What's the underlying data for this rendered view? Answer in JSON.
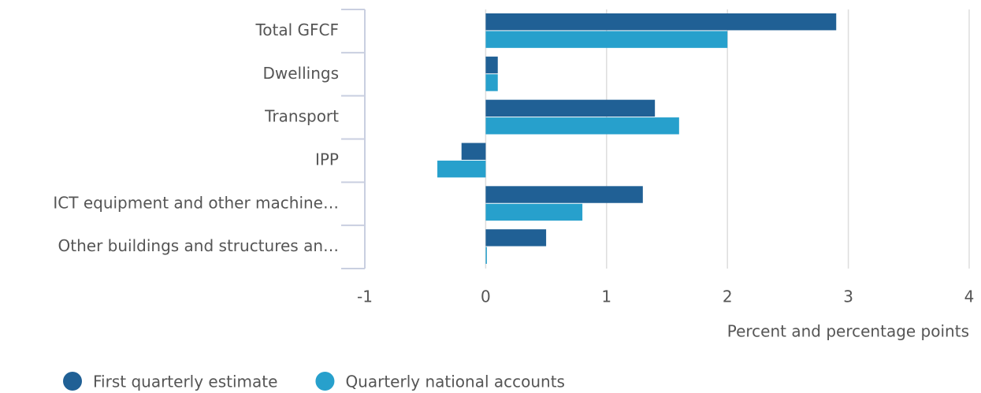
{
  "chart_data": {
    "type": "hbar",
    "categories": [
      "Total GFCF",
      "Dwellings",
      "Transport",
      "IPP",
      "ICT equipment and other machine…",
      "Other buildings and structures an…"
    ],
    "series": [
      {
        "name": "First quarterly estimate",
        "color": "#206095",
        "values": [
          2.9,
          0.1,
          1.4,
          -0.2,
          1.3,
          0.5
        ]
      },
      {
        "name": "Quarterly national accounts",
        "color": "#27a0cc",
        "values": [
          2.0,
          0.1,
          1.6,
          -0.4,
          0.8,
          0
        ]
      }
    ],
    "xlabel": "Percent and percentage points",
    "xlim": [
      -1,
      4
    ],
    "xticks": [
      -1,
      0,
      1,
      2,
      3,
      4
    ],
    "grid": true,
    "legend": "bottom-left"
  }
}
